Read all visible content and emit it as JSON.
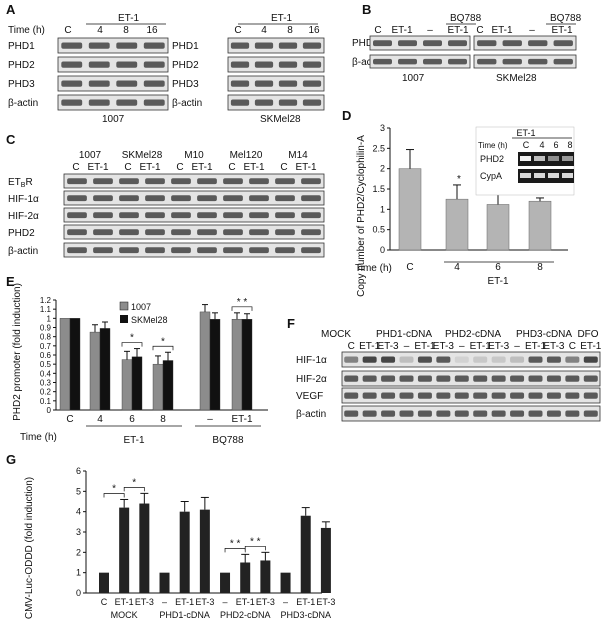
{
  "panels": {
    "A": {
      "label": "A",
      "time_label": "Time (h)",
      "treatment": "ET-1",
      "lanes": [
        "C",
        "4",
        "8",
        "16"
      ],
      "rows": [
        "PHD1",
        "PHD2",
        "PHD3",
        "β-actin"
      ],
      "cell_lines": [
        "1007",
        "SKMel28"
      ]
    },
    "B": {
      "label": "B",
      "row_label": "PHD2",
      "actin_label": "β-actin",
      "antagonist": "BQ788",
      "lanes": [
        "C",
        "ET-1",
        "–",
        "ET-1"
      ],
      "cell_lines": [
        "1007",
        "SKMel28"
      ]
    },
    "C": {
      "label": "C",
      "cell_lines": [
        "1007",
        "SKMel28",
        "M10",
        "Mel120",
        "M14"
      ],
      "lanes": [
        "C",
        "ET-1"
      ],
      "rows": [
        "ETBR",
        "HIF-1α",
        "HIF-2α",
        "PHD2",
        "β-actin"
      ]
    },
    "D": {
      "label": "D",
      "ylabel": "Copy number of PHD2/Cyclophilin-A",
      "xlabel": "Time (h)",
      "group_label": "ET-1",
      "inset": {
        "time_label": "Time (h)",
        "treatment": "ET-1",
        "lanes": [
          "C",
          "4",
          "6",
          "8"
        ],
        "rows": [
          "PHD2",
          "CypA"
        ]
      }
    },
    "E": {
      "label": "E",
      "ylabel": "PHD2 promoter (fold induction)",
      "xlabel": "Time (h)",
      "group1": "ET-1",
      "group2": "BQ788",
      "colors": {
        "s1007": "#8c8c8c",
        "sSK": "#111111"
      }
    },
    "F": {
      "label": "F",
      "groups": [
        "MOCK",
        "PHD1-cDNA",
        "PHD2-cDNA",
        "PHD3-cDNA",
        "DFO"
      ],
      "lane_labels": [
        "C",
        "ET-1",
        "ET-3",
        "–",
        "ET-1",
        "ET-3",
        "–",
        "ET-1",
        "ET-3",
        "–",
        "ET-1",
        "ET-3",
        "C",
        "ET-1"
      ],
      "rows": [
        "HIF-1α",
        "HIF-2α",
        "VEGF",
        "β-actin"
      ]
    },
    "G": {
      "label": "G",
      "ylabel": "CMV-Luc-ODDD (fold induction)",
      "groups": [
        "MOCK",
        "PHD1-cDNA",
        "PHD2-cDNA",
        "PHD3-cDNA"
      ]
    }
  },
  "chart_data": [
    {
      "type": "bar",
      "panel": "D",
      "categories": [
        "C",
        "4",
        "6",
        "8"
      ],
      "values": [
        2.0,
        1.25,
        1.12,
        1.2
      ],
      "errors": [
        0.47,
        0.35,
        0.28,
        0.08
      ],
      "significance": [
        "",
        "*",
        "*",
        "*"
      ],
      "ylim": [
        0,
        3
      ],
      "yticks": [
        "0",
        "0.5",
        "1",
        "1.5",
        "2",
        "2.5",
        "3"
      ],
      "color": "#b4b4b4"
    },
    {
      "type": "bar",
      "panel": "E",
      "categories": [
        "C",
        "4",
        "6",
        "8",
        "–",
        "ET-1"
      ],
      "series": [
        {
          "name": "1007",
          "values": [
            1.0,
            0.85,
            0.55,
            0.5,
            1.07,
            0.99
          ],
          "errors": [
            0,
            0.08,
            0.09,
            0.09,
            0.08,
            0.07
          ]
        },
        {
          "name": "SKMel28",
          "values": [
            1.0,
            0.89,
            0.58,
            0.54,
            0.99,
            0.99
          ],
          "errors": [
            0,
            0.07,
            0.09,
            0.09,
            0.07,
            0.06
          ]
        }
      ],
      "significance": [
        "",
        "",
        "*",
        "*",
        "",
        "* *"
      ],
      "ylim": [
        0,
        1.2
      ],
      "yticks": [
        "0",
        "0.1",
        "0.2",
        "0.3",
        "0.4",
        "0.5",
        "0.6",
        "0.7",
        "0.8",
        "0.9",
        "1",
        "1.1",
        "1.2"
      ]
    },
    {
      "type": "bar",
      "panel": "G",
      "categories": [
        "C",
        "ET-1",
        "ET-3",
        "–",
        "ET-1",
        "ET-3",
        "–",
        "ET-1",
        "ET-3",
        "–",
        "ET-1",
        "ET-3"
      ],
      "values": [
        1.0,
        4.2,
        4.4,
        1.0,
        4.0,
        4.1,
        1.0,
        1.5,
        1.6,
        1.0,
        3.8,
        3.2
      ],
      "errors": [
        0,
        0.4,
        0.5,
        0,
        0.5,
        0.6,
        0,
        0.4,
        0.4,
        0,
        0.4,
        0.3
      ],
      "significance_brackets": [
        [
          0,
          1,
          "*"
        ],
        [
          1,
          2,
          "*"
        ],
        [
          6,
          7,
          "* *"
        ],
        [
          7,
          8,
          "* *"
        ]
      ],
      "ylim": [
        0,
        6
      ],
      "yticks": [
        "0",
        "1",
        "2",
        "3",
        "4",
        "5",
        "6"
      ],
      "color": "#222222"
    }
  ]
}
